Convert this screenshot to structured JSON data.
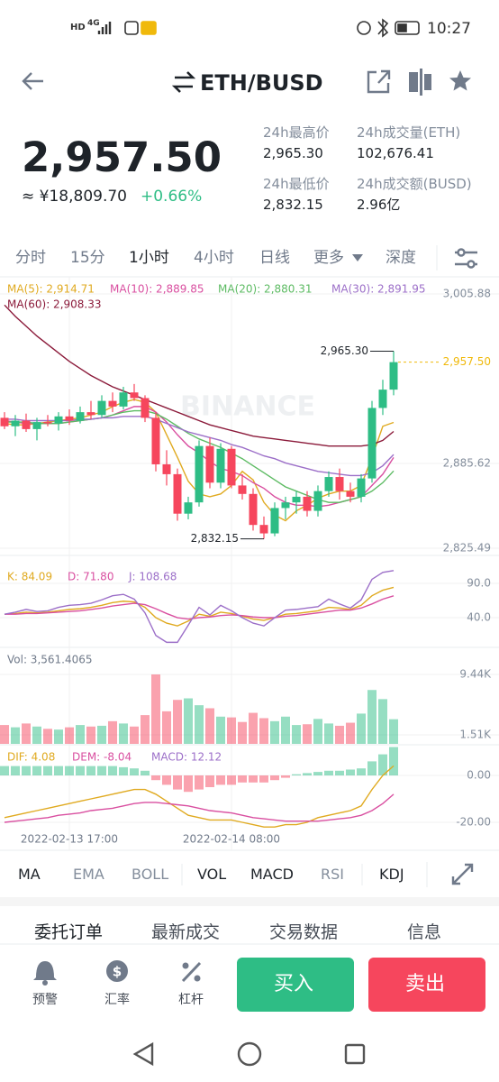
{
  "status_bar": {
    "network": [
      "HD",
      "4G"
    ],
    "time": "10:27"
  },
  "header": {
    "pair": "ETH/BUSD"
  },
  "price": {
    "last": "2,957.50",
    "cny": "≈ ¥18,809.70",
    "change": "+0.66%"
  },
  "stats": [
    {
      "label": "24h最高价",
      "value": "2,965.30"
    },
    {
      "label": "24h成交量(ETH)",
      "value": "102,676.41"
    },
    {
      "label": "24h最低价",
      "value": "2,832.15"
    },
    {
      "label": "24h成交额(BUSD)",
      "value": "2.96亿"
    }
  ],
  "intervals": [
    "分时",
    "15分",
    "1小时",
    "4小时",
    "日线",
    "更多",
    "深度"
  ],
  "chart_data": {
    "type": "candlestick",
    "watermark": "BINANCE",
    "categories": [
      null,
      null,
      null,
      null,
      null,
      null,
      "2022-02-13 17:00",
      null,
      null,
      null,
      null,
      null,
      null,
      null,
      null,
      null,
      null,
      null,
      null,
      null,
      null,
      "2022-02-14 08:00",
      null,
      null,
      null,
      null,
      null,
      null,
      null,
      null,
      null,
      null,
      null,
      null,
      null,
      null,
      null
    ],
    "open": [
      2918,
      2912,
      2916,
      2910,
      2915,
      2914,
      2919,
      2916,
      2922,
      2920,
      2930,
      2926,
      2936,
      2932,
      2918,
      2885,
      2878,
      2850,
      2858,
      2898,
      2872,
      2896,
      2870,
      2864,
      2842,
      2836,
      2854,
      2858,
      2862,
      2852,
      2866,
      2876,
      2866,
      2862,
      2875,
      2925,
      2938
    ],
    "high": [
      2922,
      2920,
      2921,
      2918,
      2920,
      2922,
      2924,
      2926,
      2930,
      2934,
      2936,
      2940,
      2942,
      2934,
      2922,
      2895,
      2882,
      2862,
      2902,
      2904,
      2900,
      2898,
      2878,
      2868,
      2848,
      2858,
      2862,
      2866,
      2866,
      2870,
      2880,
      2882,
      2872,
      2878,
      2930,
      2945,
      2965.3
    ],
    "low": [
      2910,
      2905,
      2908,
      2902,
      2912,
      2909,
      2913,
      2914,
      2917,
      2918,
      2922,
      2924,
      2930,
      2915,
      2880,
      2870,
      2845,
      2846,
      2855,
      2868,
      2868,
      2868,
      2860,
      2838,
      2832.15,
      2834,
      2846,
      2850,
      2848,
      2848,
      2862,
      2860,
      2858,
      2858,
      2872,
      2920,
      2934
    ],
    "close": [
      2912,
      2916,
      2910,
      2915,
      2914,
      2919,
      2916,
      2922,
      2920,
      2930,
      2926,
      2936,
      2932,
      2918,
      2885,
      2878,
      2850,
      2858,
      2898,
      2872,
      2896,
      2870,
      2864,
      2842,
      2836,
      2854,
      2858,
      2862,
      2852,
      2866,
      2876,
      2866,
      2862,
      2875,
      2925,
      2938,
      2957.5
    ],
    "up_color": "#2ebd85",
    "down_color": "#f6465d",
    "ylim": [
      2821.01,
      3016.12
    ],
    "yticks": [
      {
        "value": 3005.88,
        "label": "3,005.88"
      },
      {
        "value": 2885.62,
        "label": "2,885.62"
      },
      {
        "value": 2825.49,
        "label": "2,825.49"
      }
    ],
    "grid": true,
    "annotations": [
      {
        "value": 2965.3,
        "label": "2,965.30",
        "index": 36
      },
      {
        "value": 2832.15,
        "label": "2,832.15",
        "index": 24
      }
    ],
    "last_price": {
      "value": 2957.5,
      "label": "2,957.50",
      "color": "#f0b90b"
    },
    "series": [
      {
        "label": "MA(5): 2,914.71",
        "color": "#e0aa20",
        "values": [
          2914,
          2913,
          2913,
          2914,
          2915,
          2916,
          2917,
          2918,
          2920,
          2922,
          2926,
          2929,
          2931,
          2929,
          2922,
          2906,
          2890,
          2873,
          2864,
          2862,
          2864,
          2870,
          2880,
          2874,
          2858,
          2849,
          2845,
          2852,
          2856,
          2861,
          2864,
          2866,
          2866,
          2870,
          2890,
          2912,
          2914.71
        ]
      },
      {
        "label": "MA(10): 2,889.85",
        "color": "#d94fa0",
        "values": [
          2916,
          2915,
          2914,
          2914,
          2914,
          2914,
          2915,
          2916,
          2917,
          2918,
          2920,
          2923,
          2926,
          2926,
          2922,
          2915,
          2906,
          2898,
          2893,
          2887,
          2882,
          2880,
          2877,
          2872,
          2868,
          2862,
          2858,
          2856,
          2856,
          2855,
          2856,
          2858,
          2860,
          2862,
          2870,
          2878,
          2889.85
        ]
      },
      {
        "label": "MA(20): 2,880.31",
        "color": "#5dbb63",
        "values": [
          2915,
          2915,
          2915,
          2914,
          2914,
          2914,
          2915,
          2916,
          2917,
          2918,
          2920,
          2922,
          2923,
          2923,
          2921,
          2917,
          2912,
          2907,
          2903,
          2900,
          2897,
          2893,
          2889,
          2884,
          2879,
          2874,
          2869,
          2866,
          2863,
          2860,
          2858,
          2858,
          2860,
          2862,
          2866,
          2872,
          2880.31
        ]
      },
      {
        "label": "MA(30): 2,891.95",
        "color": "#9c6fc8",
        "values": [
          2917,
          2917,
          2916,
          2916,
          2916,
          2916,
          2916,
          2917,
          2917,
          2918,
          2918,
          2919,
          2919,
          2919,
          2917,
          2914,
          2911,
          2908,
          2906,
          2904,
          2902,
          2899,
          2897,
          2894,
          2891,
          2889,
          2886,
          2884,
          2882,
          2880,
          2879,
          2878,
          2877,
          2877,
          2879,
          2884,
          2891.95
        ]
      },
      {
        "label": "MA(60): 2,908.33",
        "color": "#8b1a3a",
        "values": [
          2998,
          2990,
          2983,
          2976,
          2970,
          2964,
          2958,
          2953,
          2948,
          2944,
          2940,
          2937,
          2934,
          2931,
          2928,
          2925,
          2922,
          2919,
          2916,
          2913,
          2911,
          2909,
          2907,
          2905,
          2904,
          2903,
          2902,
          2901,
          2900,
          2899,
          2898,
          2898,
          2898,
          2898,
          2899,
          2902,
          2908.33
        ]
      }
    ],
    "kdj": {
      "ylim": [
        4.5,
        125.5
      ],
      "yticks": [
        {
          "value": 90,
          "label": "90.0"
        },
        {
          "value": 40,
          "label": "40.0"
        }
      ],
      "series": [
        {
          "label": "K: 84.09",
          "color": "#e0aa20",
          "values": [
            45,
            46,
            48,
            47,
            48,
            50,
            52,
            53,
            55,
            58,
            62,
            64,
            63,
            55,
            40,
            32,
            28,
            35,
            45,
            42,
            48,
            46,
            42,
            38,
            36,
            40,
            45,
            46,
            48,
            50,
            55,
            54,
            52,
            58,
            72,
            80,
            84.09
          ]
        },
        {
          "label": "D: 71.80",
          "color": "#d94fa0",
          "values": [
            45,
            45,
            46,
            46,
            47,
            48,
            49,
            50,
            52,
            54,
            57,
            59,
            61,
            59,
            53,
            46,
            40,
            38,
            40,
            41,
            43,
            44,
            43,
            41,
            40,
            40,
            42,
            43,
            45,
            47,
            49,
            51,
            51,
            54,
            60,
            67,
            71.8
          ]
        },
        {
          "label": "J: 108.68",
          "color": "#9c6fc8",
          "values": [
            45,
            48,
            52,
            49,
            50,
            55,
            58,
            59,
            61,
            66,
            72,
            74,
            67,
            47,
            14,
            4,
            4,
            29,
            55,
            44,
            58,
            50,
            40,
            32,
            28,
            40,
            51,
            52,
            54,
            56,
            67,
            60,
            54,
            66,
            96,
            106,
            108.68
          ]
        }
      ]
    },
    "volume": {
      "label": "Vol: 3,561.4065",
      "ylim": [
        324,
        10387
      ],
      "yticks": [
        {
          "value": 9440,
          "label": "9.44K"
        },
        {
          "value": 1510,
          "label": "1.51K"
        }
      ],
      "values": [
        2800,
        2500,
        3000,
        2600,
        2300,
        2200,
        2500,
        2800,
        2600,
        2700,
        3300,
        3000,
        2600,
        4100,
        9440,
        4600,
        6100,
        6300,
        5400,
        5000,
        3900,
        3800,
        3200,
        4400,
        3700,
        3300,
        3900,
        2800,
        2900,
        3600,
        3000,
        2700,
        3100,
        4300,
        7400,
        6200,
        3561.4065
      ]
    },
    "macd": {
      "ylim": [
        -30.77,
        10.77
      ],
      "yticks": [
        {
          "value": 0,
          "label": "0.00"
        },
        {
          "value": -20,
          "label": "-20.00"
        }
      ],
      "series": [
        {
          "label": "DIF: 4.08",
          "color": "#e0aa20",
          "values": [
            -18,
            -17,
            -16,
            -15,
            -14,
            -13,
            -12,
            -11,
            -10,
            -9,
            -8,
            -7,
            -6,
            -6,
            -8,
            -11,
            -14,
            -17,
            -18,
            -19,
            -19,
            -19,
            -20,
            -21,
            -22,
            -22,
            -21,
            -21,
            -20,
            -18,
            -17,
            -16,
            -15,
            -13,
            -6,
            0,
            4.08
          ]
        },
        {
          "label": "DEM: -8.04",
          "color": "#d94fa0",
          "values": [
            -20,
            -19.5,
            -19,
            -18.5,
            -18,
            -17,
            -16.5,
            -16,
            -15,
            -14.5,
            -14,
            -13,
            -12,
            -11.5,
            -11.5,
            -12,
            -12.5,
            -13,
            -14,
            -15,
            -15.5,
            -16,
            -17,
            -18,
            -18.5,
            -19,
            -19.5,
            -19.5,
            -19.5,
            -19.5,
            -19,
            -18.5,
            -18,
            -17,
            -15,
            -12,
            -8.04
          ]
        }
      ],
      "histogram": {
        "label": "MACD: 12.12",
        "color": "#9c6fc8",
        "values": [
          4,
          4,
          4,
          4,
          4,
          4,
          4,
          4,
          4,
          4,
          4,
          3.5,
          3,
          2,
          -2,
          -4,
          -6,
          -7,
          -6,
          -5,
          -4,
          -4,
          -3,
          -3,
          -3,
          -2,
          -1,
          0.5,
          1,
          1.5,
          2,
          2,
          2.5,
          3,
          6,
          9,
          12.12
        ]
      }
    }
  },
  "indicator_tabs": [
    "MA",
    "EMA",
    "BOLL",
    "VOL",
    "MACD",
    "RSI",
    "KDJ"
  ],
  "order_tabs": [
    "委托订单",
    "最新成交",
    "交易数据",
    "信息"
  ],
  "bottom_bar": {
    "items": [
      "预警",
      "汇率",
      "杠杆"
    ],
    "buy": "买入",
    "sell": "卖出"
  }
}
